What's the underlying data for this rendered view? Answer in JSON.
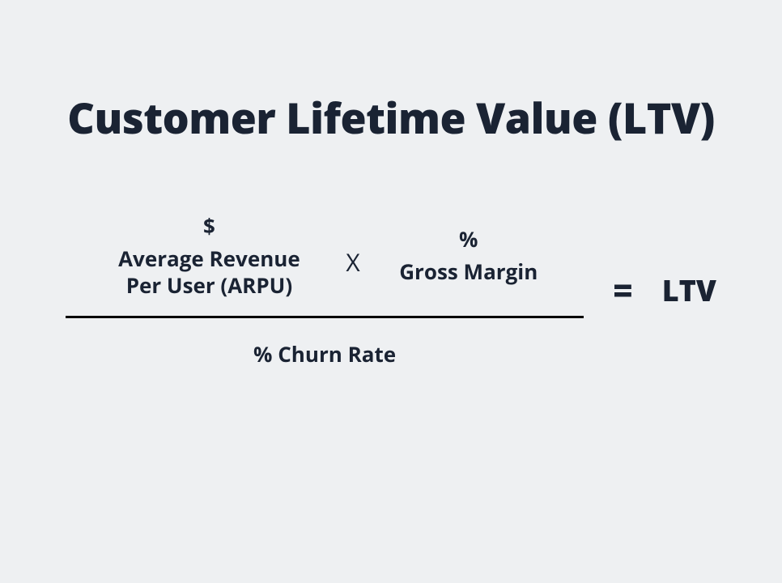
{
  "diagram": {
    "type": "formula",
    "title": "Customer Lifetime Value (LTV)",
    "background_color": "#eef0f2",
    "text_color": "#1a2333",
    "title_fontsize": 52,
    "term_fontsize": 26,
    "equals_fontsize": 42,
    "result_fontsize": 36,
    "fraction_bar_color": "#000000",
    "fraction_bar_width": 640,
    "fraction_bar_height": 3,
    "numerator": {
      "terms": [
        {
          "unit": "$",
          "label_line1": "Average Revenue",
          "label_line2": "Per User (ARPU)"
        },
        {
          "unit": "%",
          "label_line1": "Gross Margin",
          "label_line2": ""
        }
      ],
      "operator": "X"
    },
    "denominator": {
      "label": "% Churn Rate"
    },
    "equals": "=",
    "result": "LTV"
  }
}
